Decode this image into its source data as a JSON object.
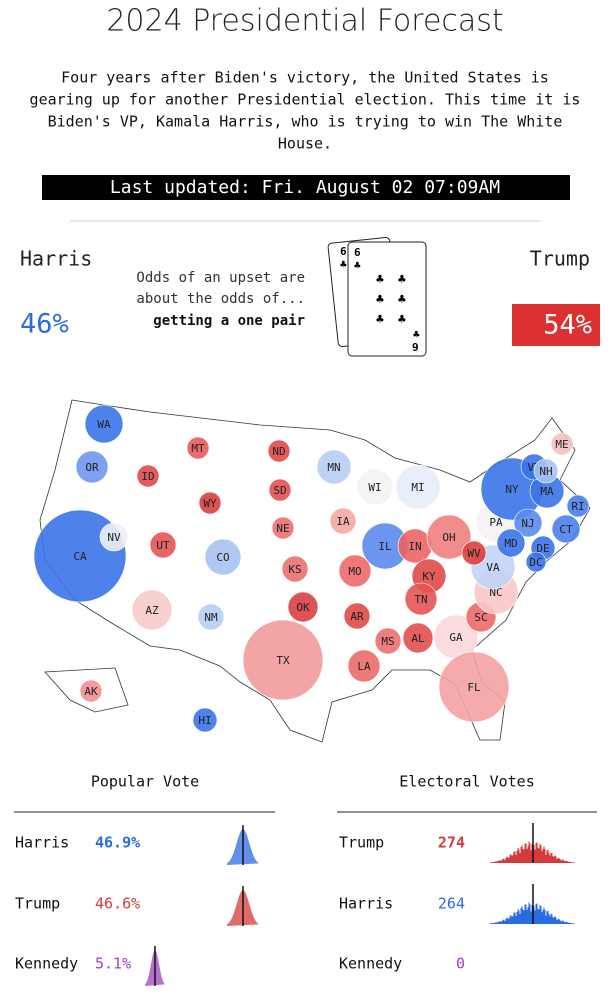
{
  "header": {
    "title": "2024 Presidential Forecast",
    "intro": [
      "Four years after Biden's victory, the United States is",
      "gearing up for another Presidential election. This time it is",
      "Biden's VP, Kamala Harris, who is trying to win The White",
      "House."
    ],
    "updated": "Last updated: Fri. August 02 07:09AM"
  },
  "odds": {
    "harris_name": "Harris",
    "harris_pct": "46%",
    "trump_name": "Trump",
    "trump_pct": "54%",
    "text": [
      "Odds of an upset are",
      "about the odds of..."
    ],
    "answer": "getting a one pair",
    "cards": {
      "back_rank": "6",
      "front_rank": "6",
      "bottom_rank": "9",
      "suit": "♣"
    }
  },
  "map": {
    "states": [
      {
        "label": "WA",
        "color": "#3b74e8"
      },
      {
        "label": "OR",
        "color": "#6f97ee"
      },
      {
        "label": "CA",
        "color": "#3b74e8"
      },
      {
        "label": "NV",
        "color": "#eef0f8"
      },
      {
        "label": "ID",
        "color": "#e04a4a"
      },
      {
        "label": "MT",
        "color": "#e85c5c"
      },
      {
        "label": "WY",
        "color": "#d93f3f"
      },
      {
        "label": "UT",
        "color": "#e65454"
      },
      {
        "label": "AZ",
        "color": "#f7caca"
      },
      {
        "label": "CO",
        "color": "#a9c2f2"
      },
      {
        "label": "NM",
        "color": "#b7cdf4"
      },
      {
        "label": "ND",
        "color": "#e04a4a"
      },
      {
        "label": "SD",
        "color": "#e25050"
      },
      {
        "label": "NE",
        "color": "#ec7070"
      },
      {
        "label": "KS",
        "color": "#ec7070"
      },
      {
        "label": "OK",
        "color": "#d93f3f"
      },
      {
        "label": "TX",
        "color": "#f29a9a"
      },
      {
        "label": "MN",
        "color": "#b7cdf4"
      },
      {
        "label": "IA",
        "color": "#f4a7a7"
      },
      {
        "label": "MO",
        "color": "#ec6a6a"
      },
      {
        "label": "AR",
        "color": "#e04a4a"
      },
      {
        "label": "LA",
        "color": "#ec6a6a"
      },
      {
        "label": "MS",
        "color": "#ec7070"
      },
      {
        "label": "AL",
        "color": "#e25050"
      },
      {
        "label": "IL",
        "color": "#5b8bec"
      },
      {
        "label": "IN",
        "color": "#ec6464"
      },
      {
        "label": "WI",
        "color": "#f3f3f6"
      },
      {
        "label": "MI",
        "color": "#e6ecf9"
      },
      {
        "label": "OH",
        "color": "#f08080"
      },
      {
        "label": "KY",
        "color": "#e04a4a"
      },
      {
        "label": "TN",
        "color": "#e45454"
      },
      {
        "label": "GA",
        "color": "#fad8d8"
      },
      {
        "label": "FL",
        "color": "#f4a2a2"
      },
      {
        "label": "SC",
        "color": "#ec6a6a"
      },
      {
        "label": "NC",
        "color": "#f8c8c8"
      },
      {
        "label": "VA",
        "color": "#c2d4f6"
      },
      {
        "label": "WV",
        "color": "#d93f3f"
      },
      {
        "label": "PA",
        "color": "#f6f1f3"
      },
      {
        "label": "NY",
        "color": "#3b74e8"
      },
      {
        "label": "NJ",
        "color": "#5b8bec"
      },
      {
        "label": "DE",
        "color": "#3b74e8"
      },
      {
        "label": "MD",
        "color": "#3b74e8"
      },
      {
        "label": "DC",
        "color": "#3b74e8"
      },
      {
        "label": "CT",
        "color": "#4a80ea"
      },
      {
        "label": "RI",
        "color": "#4a80ea"
      },
      {
        "label": "MA",
        "color": "#3b74e8"
      },
      {
        "label": "VT",
        "color": "#3b74e8"
      },
      {
        "label": "NH",
        "color": "#a9c2f2"
      },
      {
        "label": "ME",
        "color": "#f4c0c0"
      },
      {
        "label": "AK",
        "color": "#f09090"
      },
      {
        "label": "HI",
        "color": "#3b74e8"
      }
    ]
  },
  "popular_vote": {
    "title": "Popular Vote",
    "rows": [
      {
        "name": "Harris",
        "value": "46.9%"
      },
      {
        "name": "Trump",
        "value": "46.6%"
      },
      {
        "name": "Kennedy",
        "value": "5.1%"
      }
    ]
  },
  "electoral_votes": {
    "title": "Electoral Votes",
    "rows": [
      {
        "name": "Trump",
        "value": "274"
      },
      {
        "name": "Harris",
        "value": "264"
      },
      {
        "name": "Kennedy",
        "value": "0"
      }
    ]
  }
}
